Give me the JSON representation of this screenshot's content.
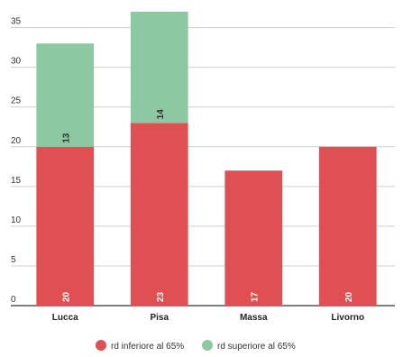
{
  "chart_data": {
    "type": "bar",
    "stacked": true,
    "categories": [
      "Lucca",
      "Pisa",
      "Massa",
      "Livorno"
    ],
    "series": [
      {
        "name": "rd inferiore al 65%",
        "values": [
          20,
          23,
          17,
          20
        ],
        "color": "#e05052"
      },
      {
        "name": "rd superiore al 65%",
        "values": [
          13,
          14,
          0,
          0
        ],
        "color": "#8cc9a3"
      }
    ],
    "yticks": [
      "0",
      "5",
      "10",
      "15",
      "20",
      "25",
      "30",
      "35"
    ],
    "ylim": [
      0,
      37
    ],
    "grid": true,
    "legend_position": "bottom",
    "title": "",
    "xlabel": "",
    "ylabel": ""
  }
}
